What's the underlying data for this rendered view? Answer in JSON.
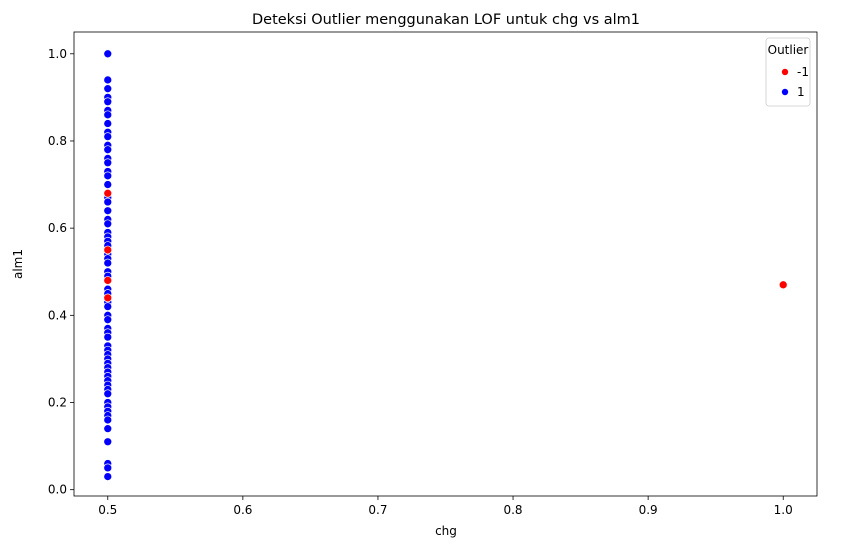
{
  "chart_data": {
    "type": "scatter",
    "title": "Deteksi Outlier menggunakan LOF untuk chg vs alm1",
    "xlabel": "chg",
    "ylabel": "alm1",
    "xlim": [
      0.475,
      1.025
    ],
    "ylim": [
      -0.0145,
      1.05
    ],
    "x_ticks": [
      "0.5",
      "0.6",
      "0.7",
      "0.8",
      "0.9",
      "1.0"
    ],
    "y_ticks": [
      "0.0",
      "0.2",
      "0.4",
      "0.6",
      "0.8",
      "1.0"
    ],
    "grid": false,
    "legend": {
      "title": "Outlier",
      "placement": "top-right",
      "entries": [
        "-1",
        "1"
      ]
    },
    "colors": {
      "outlier": "#ff0000",
      "inlier": "#0000ff"
    },
    "series": [
      {
        "name": "-1",
        "color": "#ff0000",
        "points": [
          {
            "x": 0.5,
            "y": 0.68
          },
          {
            "x": 0.5,
            "y": 0.55
          },
          {
            "x": 0.5,
            "y": 0.48
          },
          {
            "x": 0.5,
            "y": 0.44
          },
          {
            "x": 1.0,
            "y": 0.47
          }
        ]
      },
      {
        "name": "1",
        "color": "#0000ff",
        "points": [
          {
            "x": 0.5,
            "y": 1.0
          },
          {
            "x": 0.5,
            "y": 0.94
          },
          {
            "x": 0.5,
            "y": 0.92
          },
          {
            "x": 0.5,
            "y": 0.9
          },
          {
            "x": 0.5,
            "y": 0.89
          },
          {
            "x": 0.5,
            "y": 0.87
          },
          {
            "x": 0.5,
            "y": 0.86
          },
          {
            "x": 0.5,
            "y": 0.84
          },
          {
            "x": 0.5,
            "y": 0.82
          },
          {
            "x": 0.5,
            "y": 0.81
          },
          {
            "x": 0.5,
            "y": 0.79
          },
          {
            "x": 0.5,
            "y": 0.78
          },
          {
            "x": 0.5,
            "y": 0.76
          },
          {
            "x": 0.5,
            "y": 0.75
          },
          {
            "x": 0.5,
            "y": 0.73
          },
          {
            "x": 0.5,
            "y": 0.72
          },
          {
            "x": 0.5,
            "y": 0.7
          },
          {
            "x": 0.5,
            "y": 0.67
          },
          {
            "x": 0.5,
            "y": 0.66
          },
          {
            "x": 0.5,
            "y": 0.64
          },
          {
            "x": 0.5,
            "y": 0.62
          },
          {
            "x": 0.5,
            "y": 0.61
          },
          {
            "x": 0.5,
            "y": 0.59
          },
          {
            "x": 0.5,
            "y": 0.58
          },
          {
            "x": 0.5,
            "y": 0.57
          },
          {
            "x": 0.5,
            "y": 0.56
          },
          {
            "x": 0.5,
            "y": 0.54
          },
          {
            "x": 0.5,
            "y": 0.53
          },
          {
            "x": 0.5,
            "y": 0.52
          },
          {
            "x": 0.5,
            "y": 0.5
          },
          {
            "x": 0.5,
            "y": 0.49
          },
          {
            "x": 0.5,
            "y": 0.46
          },
          {
            "x": 0.5,
            "y": 0.45
          },
          {
            "x": 0.5,
            "y": 0.43
          },
          {
            "x": 0.5,
            "y": 0.42
          },
          {
            "x": 0.5,
            "y": 0.4
          },
          {
            "x": 0.5,
            "y": 0.39
          },
          {
            "x": 0.5,
            "y": 0.37
          },
          {
            "x": 0.5,
            "y": 0.36
          },
          {
            "x": 0.5,
            "y": 0.35
          },
          {
            "x": 0.5,
            "y": 0.33
          },
          {
            "x": 0.5,
            "y": 0.32
          },
          {
            "x": 0.5,
            "y": 0.31
          },
          {
            "x": 0.5,
            "y": 0.3
          },
          {
            "x": 0.5,
            "y": 0.29
          },
          {
            "x": 0.5,
            "y": 0.28
          },
          {
            "x": 0.5,
            "y": 0.27
          },
          {
            "x": 0.5,
            "y": 0.26
          },
          {
            "x": 0.5,
            "y": 0.25
          },
          {
            "x": 0.5,
            "y": 0.24
          },
          {
            "x": 0.5,
            "y": 0.23
          },
          {
            "x": 0.5,
            "y": 0.22
          },
          {
            "x": 0.5,
            "y": 0.2
          },
          {
            "x": 0.5,
            "y": 0.19
          },
          {
            "x": 0.5,
            "y": 0.18
          },
          {
            "x": 0.5,
            "y": 0.17
          },
          {
            "x": 0.5,
            "y": 0.16
          },
          {
            "x": 0.5,
            "y": 0.14
          },
          {
            "x": 0.5,
            "y": 0.11
          },
          {
            "x": 0.5,
            "y": 0.06
          },
          {
            "x": 0.5,
            "y": 0.05
          },
          {
            "x": 0.5,
            "y": 0.03
          }
        ]
      }
    ]
  }
}
